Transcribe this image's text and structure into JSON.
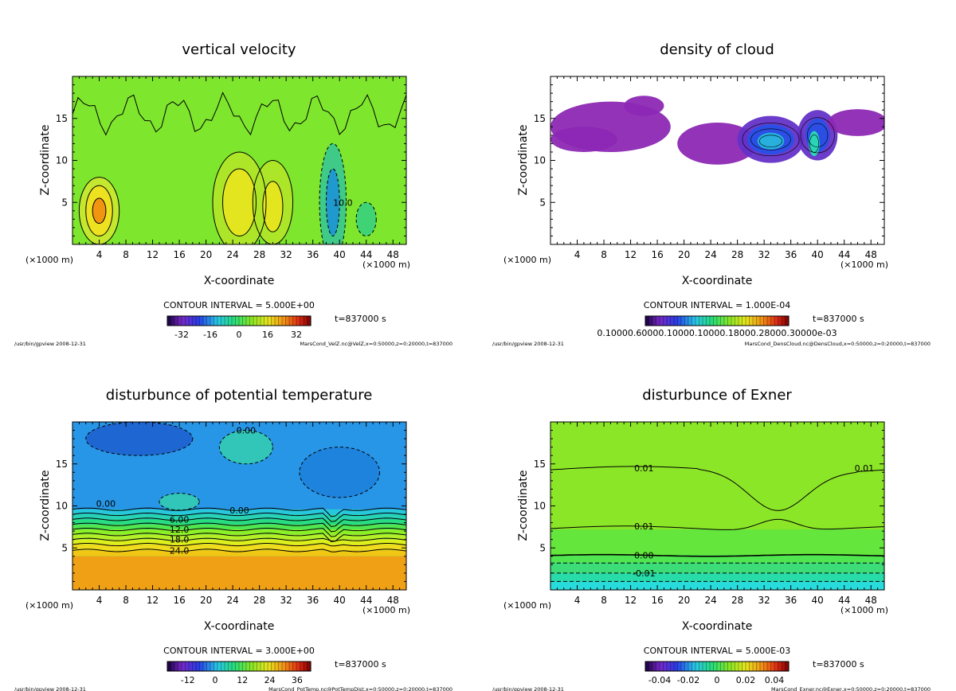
{
  "figure": {
    "xunit": "(×1000 m)",
    "xlabel": "X-coordinate",
    "ylabel": "Z-coordinate",
    "time_label": "t=837000 s",
    "footer_left": "/usr/bin/gpview   2008-12-31"
  },
  "chart_data": [
    {
      "type": "heatmap",
      "title": "vertical velocity",
      "xlabel": "X-coordinate",
      "ylabel": "Z-coordinate",
      "xlim": [
        0,
        50
      ],
      "ylim": [
        0,
        20
      ],
      "xticks": [
        4,
        8,
        12,
        16,
        20,
        24,
        28,
        32,
        36,
        40,
        44,
        48
      ],
      "xtick_labels": [
        "4",
        "8",
        "12",
        "16",
        "20",
        "24",
        "28",
        "32",
        "36",
        "40",
        "44",
        "48"
      ],
      "yticks": [
        5,
        10,
        15
      ],
      "ytick_labels": [
        "5",
        "10",
        "15"
      ],
      "contour_interval_text": "CONTOUR INTERVAL = 5.000E+00",
      "colorbar_ticks": [
        -32,
        -16,
        0,
        16,
        32
      ],
      "colorbar_tick_labels": [
        "-32",
        "-16",
        "0",
        "16",
        "32"
      ],
      "colorbar_range": [
        -40,
        40
      ],
      "colormap": "rainbow",
      "background_color": "#7fe62e",
      "contour_labels": [
        {
          "text": "10.0",
          "x": 40.5,
          "z": 5
        }
      ],
      "footer_right": "MarsCond_VelZ.nc@VelZ,x=0:50000,z=0:20000,t=837000",
      "features": [
        {
          "kind": "blob",
          "x": 4,
          "z": 4,
          "rx": 3,
          "rz": 4,
          "color": "#c8e830"
        },
        {
          "kind": "blob",
          "x": 4,
          "z": 4,
          "rx": 2,
          "rz": 3,
          "color": "#f0e020"
        },
        {
          "kind": "blob",
          "x": 4,
          "z": 4,
          "rx": 1,
          "rz": 1.5,
          "color": "#f09010"
        },
        {
          "kind": "blob",
          "x": 25,
          "z": 5,
          "rx": 4,
          "rz": 6,
          "color": "#b0e628"
        },
        {
          "kind": "blob",
          "x": 25,
          "z": 5,
          "rx": 2.5,
          "rz": 4,
          "color": "#e6e61e"
        },
        {
          "kind": "blob",
          "x": 30,
          "z": 5,
          "rx": 3,
          "rz": 5,
          "color": "#b0e628"
        },
        {
          "kind": "blob",
          "x": 30,
          "z": 4.5,
          "rx": 1.5,
          "rz": 3,
          "color": "#e6e61e"
        },
        {
          "kind": "blob",
          "x": 39,
          "z": 5,
          "rx": 2,
          "rz": 7,
          "color": "#3cc88c"
        },
        {
          "kind": "blob",
          "x": 39,
          "z": 5,
          "rx": 1,
          "rz": 4,
          "color": "#1e96d2"
        },
        {
          "kind": "blob",
          "x": 44,
          "z": 3,
          "rx": 1.5,
          "rz": 2,
          "color": "#3cd27a"
        }
      ]
    },
    {
      "type": "heatmap",
      "title": "density of cloud",
      "xlabel": "X-coordinate",
      "ylabel": "Z-coordinate",
      "xlim": [
        0,
        50
      ],
      "ylim": [
        0,
        20
      ],
      "xticks": [
        4,
        8,
        12,
        16,
        20,
        24,
        28,
        32,
        36,
        40,
        44,
        48
      ],
      "xtick_labels": [
        "4",
        "8",
        "12",
        "16",
        "20",
        "24",
        "28",
        "32",
        "36",
        "40",
        "44",
        "48"
      ],
      "yticks": [
        5,
        10,
        15
      ],
      "ytick_labels": [
        "5",
        "10",
        "15"
      ],
      "contour_interval_text": "CONTOUR INTERVAL = 1.000E-04",
      "colorbar_label_text": "0.10000.60000.10000.10000.18000.28000.30000e-03",
      "colormap": "rainbow",
      "background_color": "#ffffff",
      "contour_labels": [],
      "footer_right": "MarsCond_DensCloud.nc@DensCloud,x=0:50000,z=0:20000,t=837000",
      "features": [
        {
          "kind": "blob",
          "x": 9,
          "z": 14,
          "rx": 9,
          "rz": 3,
          "color": "#8c28b4"
        },
        {
          "kind": "blob",
          "x": 5,
          "z": 12.5,
          "rx": 5,
          "rz": 1.5,
          "color": "#8c28b4"
        },
        {
          "kind": "blob",
          "x": 14,
          "z": 16.5,
          "rx": 3,
          "rz": 1.2,
          "color": "#8c28b4"
        },
        {
          "kind": "blob",
          "x": 25,
          "z": 12,
          "rx": 6,
          "rz": 2.5,
          "color": "#8c28b4"
        },
        {
          "kind": "blob",
          "x": 33,
          "z": 12.5,
          "rx": 5,
          "rz": 2.8,
          "color": "#6432c8"
        },
        {
          "kind": "blob",
          "x": 33,
          "z": 12.5,
          "rx": 3.5,
          "rz": 1.8,
          "color": "#2850e6"
        },
        {
          "kind": "blob",
          "x": 33,
          "z": 12.3,
          "rx": 2,
          "rz": 1,
          "color": "#28b4dc"
        },
        {
          "kind": "blob",
          "x": 40,
          "z": 13,
          "rx": 3,
          "rz": 3,
          "color": "#6432c8"
        },
        {
          "kind": "blob",
          "x": 40,
          "z": 13,
          "rx": 1.8,
          "rz": 2,
          "color": "#2850e6"
        },
        {
          "kind": "blob",
          "x": 39.5,
          "z": 12,
          "rx": 0.8,
          "rz": 1.5,
          "color": "#28dcb4"
        },
        {
          "kind": "blob",
          "x": 46,
          "z": 14.5,
          "rx": 4.5,
          "rz": 1.6,
          "color": "#8c28b4"
        }
      ]
    },
    {
      "type": "heatmap",
      "title": "disturbunce of potential temperature",
      "xlabel": "X-coordinate",
      "ylabel": "Z-coordinate",
      "xlim": [
        0,
        50
      ],
      "ylim": [
        0,
        20
      ],
      "xticks": [
        4,
        8,
        12,
        16,
        20,
        24,
        28,
        32,
        36,
        40,
        44,
        48
      ],
      "xtick_labels": [
        "4",
        "8",
        "12",
        "16",
        "20",
        "24",
        "28",
        "32",
        "36",
        "40",
        "44",
        "48"
      ],
      "yticks": [
        5,
        10,
        15
      ],
      "ytick_labels": [
        "5",
        "10",
        "15"
      ],
      "contour_interval_text": "CONTOUR INTERVAL = 3.000E+00",
      "colorbar_ticks": [
        -12,
        0,
        12,
        24,
        36
      ],
      "colorbar_tick_labels": [
        "-12",
        "0",
        "12",
        "24",
        "36"
      ],
      "colorbar_range": [
        -21,
        42
      ],
      "colormap": "rainbow",
      "background_color": "#2896e6",
      "bands": [
        {
          "z0": 0,
          "z1": 4,
          "color": "#f0a014"
        },
        {
          "z0": 4,
          "z1": 4.7,
          "color": "#f0c814"
        },
        {
          "z0": 4.7,
          "z1": 5.4,
          "color": "#f0dc1e"
        },
        {
          "z0": 5.4,
          "z1": 6.0,
          "color": "#dcf01e"
        },
        {
          "z0": 6.0,
          "z1": 6.6,
          "color": "#b4f028"
        },
        {
          "z0": 6.6,
          "z1": 7.2,
          "color": "#8cf028"
        },
        {
          "z0": 7.2,
          "z1": 7.8,
          "color": "#50e650"
        },
        {
          "z0": 7.8,
          "z1": 8.4,
          "color": "#28dc82"
        },
        {
          "z0": 8.4,
          "z1": 9.0,
          "color": "#28d2b4"
        },
        {
          "z0": 9.0,
          "z1": 9.6,
          "color": "#28c8dc"
        },
        {
          "z0": 9.6,
          "z1": 20,
          "color": "#2896e6"
        }
      ],
      "contour_lines_z": [
        4.7,
        5.4,
        6.0,
        6.6,
        7.2,
        7.8,
        8.4,
        9.0,
        9.6
      ],
      "contour_labels": [
        {
          "text": "0.00",
          "x": 26,
          "z": 19
        },
        {
          "text": "0.00",
          "x": 5,
          "z": 10.3
        },
        {
          "text": "0.00",
          "x": 25,
          "z": 9.5
        },
        {
          "text": "6.00",
          "x": 16,
          "z": 8.4
        },
        {
          "text": "12.0",
          "x": 16,
          "z": 7.2
        },
        {
          "text": "18.0",
          "x": 16,
          "z": 6.0
        },
        {
          "text": "24.0",
          "x": 16,
          "z": 4.7
        }
      ],
      "footer_right": "MarsCond_PotTemp.nc@PotTempDist,x=0:50000,z=0:20000,t=837000",
      "features": [
        {
          "kind": "blob",
          "x": 10,
          "z": 18,
          "rx": 8,
          "rz": 2,
          "color": "#1e64d2"
        },
        {
          "kind": "blob",
          "x": 26,
          "z": 17,
          "rx": 4,
          "rz": 2,
          "color": "#32c8b4"
        },
        {
          "kind": "blob",
          "x": 16,
          "z": 10.5,
          "rx": 3,
          "rz": 1,
          "color": "#32c8b4"
        },
        {
          "kind": "blob",
          "x": 40,
          "z": 14,
          "rx": 6,
          "rz": 3,
          "color": "#1e82dc"
        }
      ]
    },
    {
      "type": "heatmap",
      "title": "disturbunce of Exner",
      "xlabel": "X-coordinate",
      "ylabel": "Z-coordinate",
      "xlim": [
        0,
        50
      ],
      "ylim": [
        0,
        20
      ],
      "xticks": [
        4,
        8,
        12,
        16,
        20,
        24,
        28,
        32,
        36,
        40,
        44,
        48
      ],
      "xtick_labels": [
        "4",
        "8",
        "12",
        "16",
        "20",
        "24",
        "28",
        "32",
        "36",
        "40",
        "44",
        "48"
      ],
      "yticks": [
        5,
        10,
        15
      ],
      "ytick_labels": [
        "5",
        "10",
        "15"
      ],
      "contour_interval_text": "CONTOUR INTERVAL = 5.000E-03",
      "colorbar_ticks": [
        -0.04,
        -0.02,
        0,
        0.02,
        0.04
      ],
      "colorbar_tick_labels": [
        "-0.04",
        "-0.02",
        "0",
        "0.02",
        "0.04"
      ],
      "colorbar_range": [
        -0.05,
        0.05
      ],
      "colormap": "rainbow",
      "background_color": "#8ce628",
      "bands": [
        {
          "z0": 0,
          "z1": 1,
          "color": "#28dcdc"
        },
        {
          "z0": 1,
          "z1": 2,
          "color": "#28dcaa"
        },
        {
          "z0": 2,
          "z1": 3.3,
          "color": "#3cdc78"
        },
        {
          "z0": 3.3,
          "z1": 4.2,
          "color": "#50e650"
        },
        {
          "z0": 4.2,
          "z1": 7.2,
          "color": "#64e63c"
        },
        {
          "z0": 7.2,
          "z1": 20,
          "color": "#8ce628"
        }
      ],
      "contour_labels": [
        {
          "text": "0.01",
          "x": 14,
          "z": 14.5
        },
        {
          "text": "0.01",
          "x": 47,
          "z": 14.5
        },
        {
          "text": "0.01",
          "x": 14,
          "z": 7.6
        },
        {
          "text": "0.00",
          "x": 14,
          "z": 4.1
        },
        {
          "text": "-0.01",
          "x": 14,
          "z": 2.0
        }
      ],
      "footer_right": "MarsCond_Exner.nc@Exner,x=0:50000,z=0:20000,t=837000",
      "features": []
    }
  ]
}
